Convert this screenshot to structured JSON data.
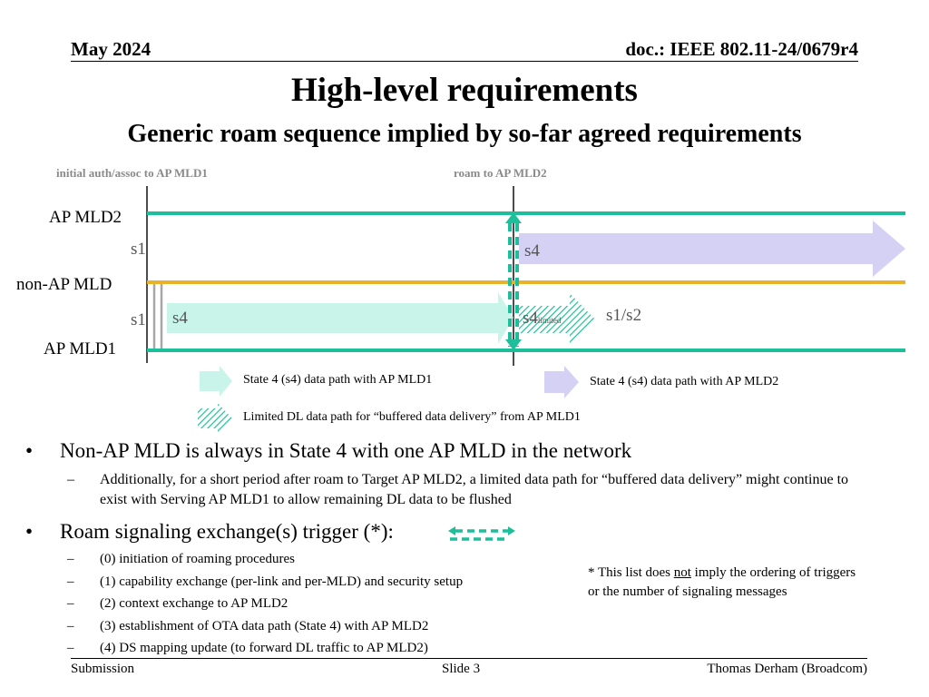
{
  "header": {
    "date": "May 2024",
    "doc": "doc.: IEEE 802.11-24/0679r4"
  },
  "title": "High-level requirements",
  "subtitle": "Generic roam sequence implied by so-far agreed requirements",
  "diagram": {
    "phase_initial": "initial auth/assoc to AP MLD1",
    "phase_roam": "roam to AP MLD2",
    "node_ap2": "AP MLD2",
    "node_nonap": "non-AP MLD",
    "node_ap1": "AP MLD1",
    "state_s1_top": "s1",
    "state_s1_bottom": "s1",
    "state_s4_ap1": "s4",
    "state_s4_ap2": "s4",
    "state_s4_limited_main": "s4",
    "state_s4_limited_sub": "limited",
    "state_s1s2": "s1/s2",
    "colors": {
      "teal": "#1dbf9a",
      "gold": "#eab22a",
      "mint": "#c8f4ea",
      "lavender": "#d4d1f5"
    }
  },
  "legend": {
    "ap1_path": "State 4 (s4) data path with AP MLD1",
    "ap2_path": "State 4 (s4) data path with AP MLD2",
    "limited_path": "Limited DL data path for “buffered data delivery” from AP MLD1"
  },
  "bullets": {
    "b1": "Non-AP MLD is always in State 4 with one AP MLD in the network",
    "b1_sub": "Additionally, for a short period after roam to Target AP MLD2, a limited data path for “buffered data delivery” might continue to exist with Serving AP MLD1 to allow remaining DL data to be flushed",
    "b2": "Roam signaling exchange(s) trigger (*):",
    "triggers": [
      "(0) initiation of roaming procedures",
      "(1) capability exchange (per-link and per-MLD) and security setup",
      "(2) context exchange to AP MLD2",
      "(3) establishment of OTA data path (State 4) with AP MLD2",
      "(4) DS mapping update (to forward DL traffic to AP MLD2)"
    ],
    "bullet_symbol": "•",
    "dash_symbol": "–"
  },
  "note": {
    "line1_pre": "* This list does ",
    "line1_em": "not",
    "line1_post": " imply the ordering of triggers",
    "line2": "or the number of signaling messages"
  },
  "footer": {
    "left": "Submission",
    "center": "Slide 3",
    "right": "Thomas Derham (Broadcom)"
  }
}
